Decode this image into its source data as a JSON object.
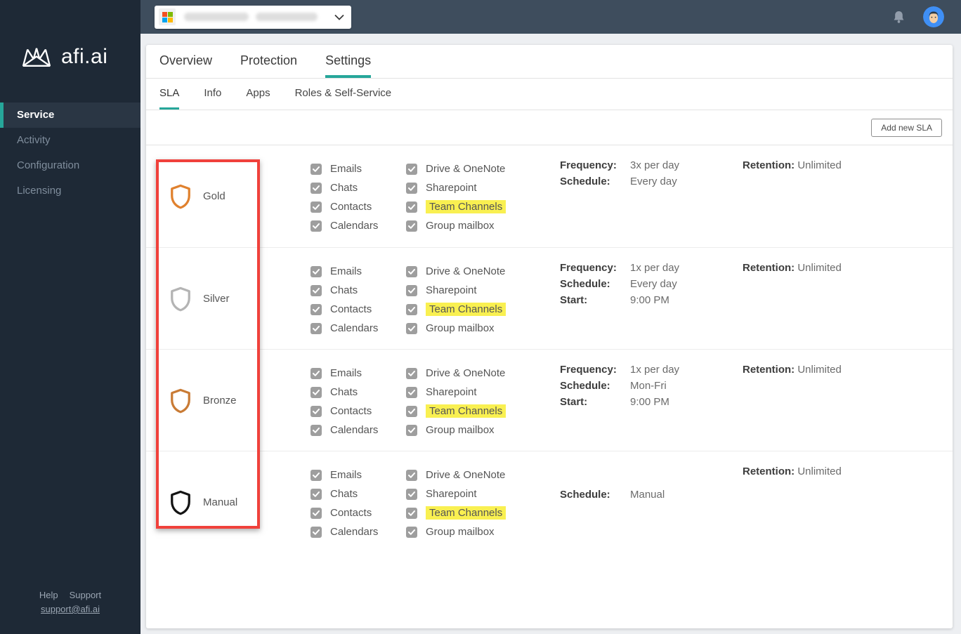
{
  "colors": {
    "accent": "#26a69a",
    "highlight": "#f9f051",
    "annotation": "#f0413b"
  },
  "sidebar": {
    "logo_text": "afi.ai",
    "items": [
      {
        "label": "Service",
        "active": true
      },
      {
        "label": "Activity",
        "active": false
      },
      {
        "label": "Configuration",
        "active": false
      },
      {
        "label": "Licensing",
        "active": false
      }
    ],
    "footer": {
      "help_label": "Help",
      "support_label": "Support",
      "email": "support@afi.ai"
    }
  },
  "topbar": {
    "workspace_selector": {
      "icon": "microsoft-logo",
      "text_redacted": true,
      "chevron_icon": "chevron-down"
    },
    "bell_icon": "notification-bell",
    "avatar_icon": "user-avatar"
  },
  "main": {
    "tabs": [
      {
        "label": "Overview",
        "active": false
      },
      {
        "label": "Protection",
        "active": false
      },
      {
        "label": "Settings",
        "active": true
      }
    ],
    "subtabs": [
      {
        "label": "SLA",
        "active": true
      },
      {
        "label": "Info",
        "active": false
      },
      {
        "label": "Apps",
        "active": false
      },
      {
        "label": "Roles & Self-Service",
        "active": false
      }
    ],
    "toolbar": {
      "add_sla_label": "Add new SLA"
    },
    "sla_rows": [
      {
        "tier": "Gold",
        "shield_color": "#e0812e",
        "services_col1": [
          {
            "label": "Emails",
            "checked": true
          },
          {
            "label": "Chats",
            "checked": true
          },
          {
            "label": "Contacts",
            "checked": true
          },
          {
            "label": "Calendars",
            "checked": true
          }
        ],
        "services_col2": [
          {
            "label": "Drive & OneNote",
            "checked": true
          },
          {
            "label": "Sharepoint",
            "checked": true
          },
          {
            "label": "Team Channels",
            "checked": true,
            "highlight": true
          },
          {
            "label": "Group mailbox",
            "checked": true
          }
        ],
        "schedule": [
          {
            "label": "Frequency:",
            "value": "3x per day"
          },
          {
            "label": "Schedule:",
            "value": "Every day"
          }
        ],
        "retention_label": "Retention:",
        "retention_value": "Unlimited"
      },
      {
        "tier": "Silver",
        "shield_color": "#b4b4b4",
        "services_col1": [
          {
            "label": "Emails",
            "checked": true
          },
          {
            "label": "Chats",
            "checked": true
          },
          {
            "label": "Contacts",
            "checked": true
          },
          {
            "label": "Calendars",
            "checked": true
          }
        ],
        "services_col2": [
          {
            "label": "Drive & OneNote",
            "checked": true
          },
          {
            "label": "Sharepoint",
            "checked": true
          },
          {
            "label": "Team Channels",
            "checked": true,
            "highlight": true
          },
          {
            "label": "Group mailbox",
            "checked": true
          }
        ],
        "schedule": [
          {
            "label": "Frequency:",
            "value": "1x per day"
          },
          {
            "label": "Schedule:",
            "value": "Every day"
          },
          {
            "label": "Start:",
            "value": "9:00 PM"
          }
        ],
        "retention_label": "Retention:",
        "retention_value": "Unlimited"
      },
      {
        "tier": "Bronze",
        "shield_color": "#c97b35",
        "services_col1": [
          {
            "label": "Emails",
            "checked": true
          },
          {
            "label": "Chats",
            "checked": true
          },
          {
            "label": "Contacts",
            "checked": true
          },
          {
            "label": "Calendars",
            "checked": true
          }
        ],
        "services_col2": [
          {
            "label": "Drive & OneNote",
            "checked": true
          },
          {
            "label": "Sharepoint",
            "checked": true
          },
          {
            "label": "Team Channels",
            "checked": true,
            "highlight": true
          },
          {
            "label": "Group mailbox",
            "checked": true
          }
        ],
        "schedule": [
          {
            "label": "Frequency:",
            "value": "1x per day"
          },
          {
            "label": "Schedule:",
            "value": "Mon-Fri"
          },
          {
            "label": "Start:",
            "value": "9:00 PM"
          }
        ],
        "retention_label": "Retention:",
        "retention_value": "Unlimited"
      },
      {
        "tier": "Manual",
        "shield_color": "#141414",
        "services_col1": [
          {
            "label": "Emails",
            "checked": true
          },
          {
            "label": "Chats",
            "checked": true
          },
          {
            "label": "Contacts",
            "checked": true
          },
          {
            "label": "Calendars",
            "checked": true
          }
        ],
        "services_col2": [
          {
            "label": "Drive & OneNote",
            "checked": true
          },
          {
            "label": "Sharepoint",
            "checked": true
          },
          {
            "label": "Team Channels",
            "checked": true,
            "highlight": true
          },
          {
            "label": "Group mailbox",
            "checked": true
          }
        ],
        "schedule": [
          {
            "label": "Schedule:",
            "value": "Manual"
          }
        ],
        "retention_label": "Retention:",
        "retention_value": "Unlimited"
      }
    ]
  }
}
